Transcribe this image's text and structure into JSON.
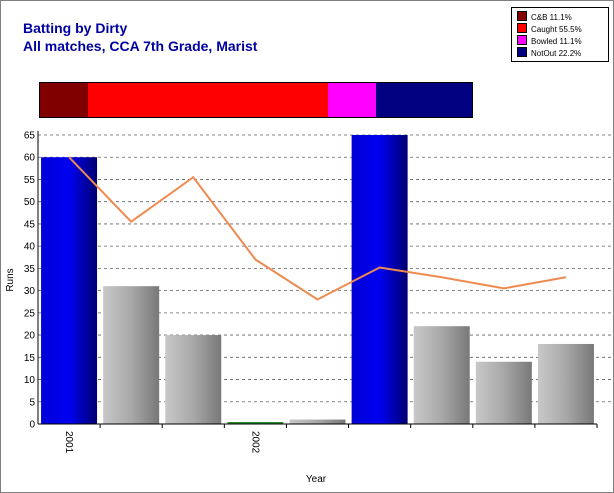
{
  "title_line1": "Batting by Dirty",
  "title_line2": "All matches, CCA 7th Grade, Marist",
  "legend": [
    {
      "label": "C&B 11.1%",
      "color": "#800000"
    },
    {
      "label": "Caught 55.5%",
      "color": "#ff0000"
    },
    {
      "label": "Bowled 11.1%",
      "color": "#ff00ff"
    },
    {
      "label": "NotOut 22.2%",
      "color": "#000080"
    }
  ],
  "dismissals": [
    {
      "name": "C&B",
      "fraction": 0.111,
      "color": "#800000"
    },
    {
      "name": "Caught",
      "fraction": 0.555,
      "color": "#ff0000"
    },
    {
      "name": "Bowled",
      "fraction": 0.111,
      "color": "#ff00ff"
    },
    {
      "name": "NotOut",
      "fraction": 0.222,
      "color": "#000080"
    }
  ],
  "chart_data": {
    "type": "bar",
    "xlabel": "Year",
    "ylabel": "Runs",
    "ylim": [
      0,
      65
    ],
    "yticks": [
      0,
      5,
      10,
      15,
      20,
      25,
      30,
      35,
      40,
      45,
      50,
      55,
      60,
      65
    ],
    "x_tick_labels": [
      {
        "index": 0,
        "label": "2001"
      },
      {
        "index": 3,
        "label": "2002"
      }
    ],
    "grid": true,
    "innings": [
      {
        "runs": 60,
        "not_out": true
      },
      {
        "runs": 31,
        "not_out": false
      },
      {
        "runs": 20,
        "not_out": false
      },
      {
        "runs": 0,
        "not_out": false
      },
      {
        "runs": 1,
        "not_out": false
      },
      {
        "runs": 65,
        "not_out": true
      },
      {
        "runs": 22,
        "not_out": false
      },
      {
        "runs": 14,
        "not_out": false
      },
      {
        "runs": 18,
        "not_out": false
      }
    ],
    "average_line": [
      60,
      45.5,
      55.5,
      37,
      28,
      35.2,
      33,
      30.5,
      33
    ],
    "colors": {
      "not_out": "#0000e0",
      "out": "#a0a0a0",
      "line": "#ee8a50",
      "duck": "#2a8a2a"
    }
  }
}
